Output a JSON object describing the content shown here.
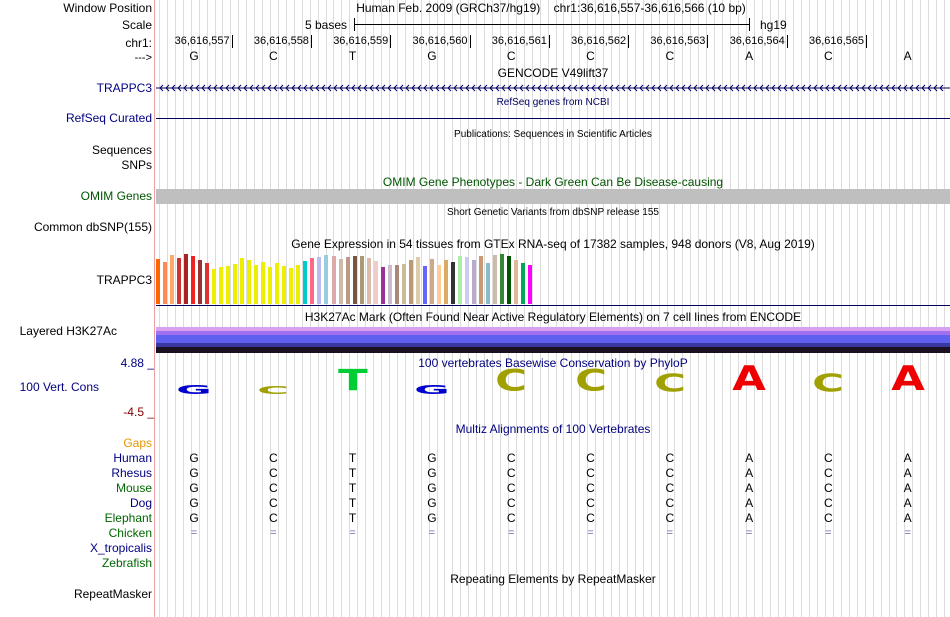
{
  "labels": {
    "window_position": "Window Position",
    "scale": "Scale",
    "chr": "chr1:",
    "strand": "--->",
    "trappc3": "TRAPPC3",
    "refseq": "RefSeq Curated",
    "sequences": "Sequences",
    "snps": "SNPs",
    "omim": "OMIM Genes",
    "dbsnp": "Common dbSNP(155)",
    "gtex_gene": "TRAPPC3",
    "h3k27ac": "Layered H3K27Ac",
    "cons_max": "4.88 _",
    "cons": "100 Vert. Cons",
    "cons_min": "-4.5 _",
    "gaps": "Gaps",
    "species": [
      "Human",
      "Rhesus",
      "Mouse",
      "Dog",
      "Elephant",
      "Chicken",
      "X_tropicalis",
      "Zebrafish"
    ],
    "repeatmasker": "RepeatMasker"
  },
  "header": {
    "assembly": "Human Feb. 2009 (GRCh37/hg19)",
    "position": "chr1:36,616,557-36,616,566 (10 bp)",
    "scale_text": "5 bases",
    "scale_db": "hg19"
  },
  "ruler_ticks": [
    "36,616,557",
    "36,616,558",
    "36,616,559",
    "36,616,560",
    "36,616,561",
    "36,616,562",
    "36,616,563",
    "36,616,564",
    "36,616,565"
  ],
  "bases": [
    "G",
    "C",
    "T",
    "G",
    "C",
    "C",
    "C",
    "A",
    "C",
    "A"
  ],
  "tracks": {
    "gencode": "GENCODE V49lift37",
    "refseq": "RefSeq genes from NCBI",
    "publications": "Publications: Sequences in Scientific Articles",
    "omim": "OMIM Gene Phenotypes - Dark Green Can Be Disease-causing",
    "dbsnp": "Short Genetic Variants from dbSNP release 155",
    "gtex": "Gene Expression in 54 tissues from GTEx RNA-seq of 17382 samples, 948 donors (V8, Aug 2019)",
    "h3k27ac": "H3K27Ac Mark (Often Found Near Active Regulatory Elements) on 7 cell lines from ENCODE",
    "phylop": "100 vertebrates Basewise Conservation by PhyloP",
    "multiz": "Multiz Alignments of 100 Vertebrates",
    "repeatmasker": "Repeating Elements by RepeatMasker"
  },
  "colors": {
    "navy": "#000060",
    "link": "#000080",
    "omim_green": "#005500",
    "species_green": "#006600",
    "gaps_orange": "#e69500",
    "cons_min": "#800000",
    "omim_bar": "#bfbfbf",
    "cons_G": "#0000cc",
    "cons_C": "#a0a000",
    "cons_T": "#00cc33",
    "cons_A": "#ee0000"
  },
  "conservation": [
    {
      "base": "G",
      "score": 0.25,
      "color": "#0000cc"
    },
    {
      "base": "C",
      "score": 0.2,
      "color": "#a0a000"
    },
    {
      "base": "T",
      "score": 0.85,
      "color": "#00cc33"
    },
    {
      "base": "G",
      "score": 0.25,
      "color": "#0000cc"
    },
    {
      "base": "C",
      "score": 0.85,
      "color": "#a0a000"
    },
    {
      "base": "C",
      "score": 0.85,
      "color": "#a0a000"
    },
    {
      "base": "C",
      "score": 0.7,
      "color": "#a0a000"
    },
    {
      "base": "A",
      "score": 1.0,
      "color": "#ee0000"
    },
    {
      "base": "C",
      "score": 0.7,
      "color": "#a0a000"
    },
    {
      "base": "A",
      "score": 1.0,
      "color": "#ee0000"
    }
  ],
  "alignments": [
    [
      "G",
      "C",
      "T",
      "G",
      "C",
      "C",
      "C",
      "A",
      "C",
      "A"
    ],
    [
      "G",
      "C",
      "T",
      "G",
      "C",
      "C",
      "C",
      "A",
      "C",
      "A"
    ],
    [
      "G",
      "C",
      "T",
      "G",
      "C",
      "C",
      "C",
      "A",
      "C",
      "A"
    ],
    [
      "G",
      "C",
      "T",
      "G",
      "C",
      "C",
      "C",
      "A",
      "C",
      "A"
    ],
    [
      "G",
      "C",
      "T",
      "G",
      "C",
      "C",
      "C",
      "A",
      "C",
      "A"
    ],
    [
      "=",
      "=",
      "=",
      "=",
      "=",
      "=",
      "=",
      "=",
      "=",
      "="
    ],
    [
      "",
      "",
      "",
      "",
      "",
      "",
      "",
      "",
      "",
      ""
    ],
    [
      "",
      "",
      "",
      "",
      "",
      "",
      "",
      "",
      "",
      ""
    ]
  ],
  "gtex_expression": [
    {
      "value": 0.9,
      "color": "#ff6600"
    },
    {
      "value": 0.85,
      "color": "#ff8855"
    },
    {
      "value": 0.98,
      "color": "#ffaa66"
    },
    {
      "value": 0.92,
      "color": "#cc3333"
    },
    {
      "value": 1.0,
      "color": "#aa2222"
    },
    {
      "value": 0.96,
      "color": "#ee2222"
    },
    {
      "value": 0.88,
      "color": "#993333"
    },
    {
      "value": 0.82,
      "color": "#dd3333"
    },
    {
      "value": 0.7,
      "color": "#eeee00"
    },
    {
      "value": 0.74,
      "color": "#eeee00"
    },
    {
      "value": 0.76,
      "color": "#eeee00"
    },
    {
      "value": 0.8,
      "color": "#eeee00"
    },
    {
      "value": 0.92,
      "color": "#eeee00"
    },
    {
      "value": 0.88,
      "color": "#eeee00"
    },
    {
      "value": 0.78,
      "color": "#eeee00"
    },
    {
      "value": 0.84,
      "color": "#eeee00"
    },
    {
      "value": 0.74,
      "color": "#eeee00"
    },
    {
      "value": 0.82,
      "color": "#eeee00"
    },
    {
      "value": 0.76,
      "color": "#eeee00"
    },
    {
      "value": 0.72,
      "color": "#eeee00"
    },
    {
      "value": 0.78,
      "color": "#eeee00"
    },
    {
      "value": 0.86,
      "color": "#00cccc"
    },
    {
      "value": 0.92,
      "color": "#ff6688"
    },
    {
      "value": 0.94,
      "color": "#bbbbee"
    },
    {
      "value": 0.98,
      "color": "#99ccdd"
    },
    {
      "value": 0.96,
      "color": "#ddaaaa"
    },
    {
      "value": 0.9,
      "color": "#ccbbaa"
    },
    {
      "value": 0.94,
      "color": "#bb9988"
    },
    {
      "value": 0.96,
      "color": "#775544"
    },
    {
      "value": 0.96,
      "color": "#aa9977"
    },
    {
      "value": 0.92,
      "color": "#ddbbaa"
    },
    {
      "value": 0.86,
      "color": "#eecccc"
    },
    {
      "value": 0.74,
      "color": "#993399"
    },
    {
      "value": 0.78,
      "color": "#ccbbcc"
    },
    {
      "value": 0.78,
      "color": "#aa8877"
    },
    {
      "value": 0.8,
      "color": "#ccbb99"
    },
    {
      "value": 0.88,
      "color": "#bb9977"
    },
    {
      "value": 0.94,
      "color": "#ddccaa"
    },
    {
      "value": 0.76,
      "color": "#6666ff"
    },
    {
      "value": 0.9,
      "color": "#ccaa88"
    },
    {
      "value": 0.78,
      "color": "#ffcc99"
    },
    {
      "value": 0.88,
      "color": "#ddaa66"
    },
    {
      "value": 0.84,
      "color": "#333333"
    },
    {
      "value": 0.96,
      "color": "#aaeeaa"
    },
    {
      "value": 0.94,
      "color": "#ccccee"
    },
    {
      "value": 0.88,
      "color": "#bbaacc"
    },
    {
      "value": 0.96,
      "color": "#cc9977"
    },
    {
      "value": 0.82,
      "color": "#88bbcc"
    },
    {
      "value": 0.98,
      "color": "#ccbbaa"
    },
    {
      "value": 1.0,
      "color": "#338833"
    },
    {
      "value": 0.96,
      "color": "#005500"
    },
    {
      "value": 0.88,
      "color": "#ddbb99"
    },
    {
      "value": 0.82,
      "color": "#00aa55"
    },
    {
      "value": 0.78,
      "color": "#ff00ff"
    }
  ]
}
